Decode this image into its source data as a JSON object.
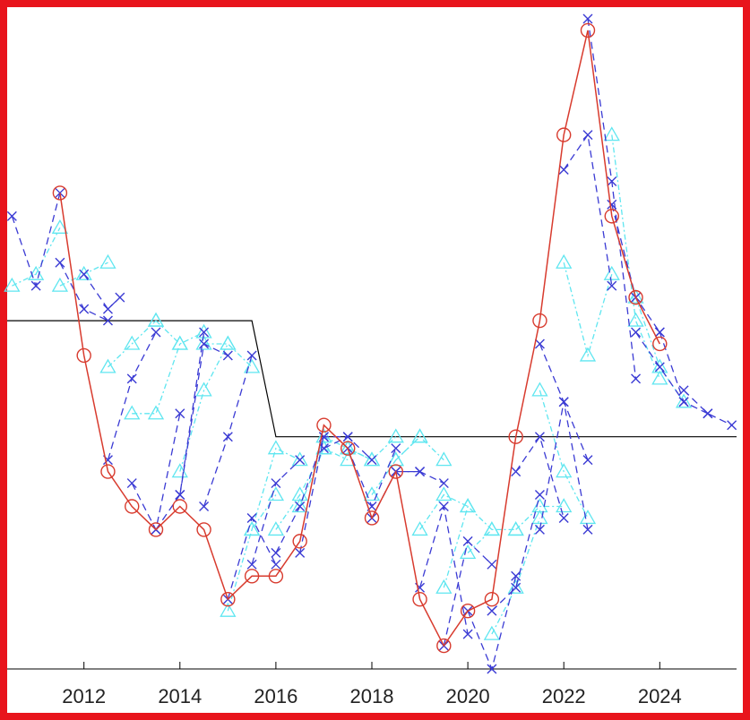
{
  "chart_data": {
    "type": "line",
    "title": "",
    "xlabel": "",
    "ylabel": "",
    "xlim": [
      2010.4,
      2025.6
    ],
    "ylim": [
      0,
      28.5
    ],
    "x_ticks": [
      2012,
      2014,
      2016,
      2018,
      2020,
      2022,
      2024
    ],
    "x_tick_labels": [
      "2012",
      "2014",
      "2016",
      "2018",
      "2020",
      "2022",
      "2024"
    ],
    "y_ticks_visible": false,
    "grid": false,
    "legend": "none",
    "colors": {
      "actual": "#d83b2e",
      "forecast_cross": "#3b3bd4",
      "forecast_triangle": "#5fe6f0",
      "reference": "#000000",
      "frame": "#e8141c"
    },
    "reference_line": {
      "x": [
        2010.4,
        2015.5,
        2016.0,
        2025.6
      ],
      "y": [
        15,
        15,
        10,
        10
      ]
    },
    "actual_series": {
      "x": [
        2011.5,
        2012.0,
        2012.5,
        2013.0,
        2013.5,
        2014.0,
        2014.5,
        2015.0,
        2015.5,
        2016.0,
        2016.5,
        2017.0,
        2017.5,
        2018.0,
        2018.5,
        2019.0,
        2019.5,
        2020.0,
        2020.5,
        2021.0,
        2021.5,
        2022.0,
        2022.5,
        2023.0,
        2023.5,
        2024.0
      ],
      "y": [
        20.5,
        13.5,
        8.5,
        7,
        6,
        7,
        6,
        3,
        4,
        4,
        5.5,
        10.5,
        9.5,
        6.5,
        8.5,
        3,
        1,
        2.5,
        3,
        10,
        15,
        23,
        27.5,
        19.5,
        16,
        14
      ]
    },
    "forecast_cross_paths": [
      {
        "x": [
          2010.5,
          2011.0,
          2011.5
        ],
        "y": [
          19.5,
          16.5,
          20.5
        ]
      },
      {
        "x": [
          2011.5,
          2012.0,
          2012.5
        ],
        "y": [
          17.5,
          15.5,
          15
        ]
      },
      {
        "x": [
          2012.0,
          2012.5,
          2012.75
        ],
        "y": [
          17,
          15.5,
          16
        ]
      },
      {
        "x": [
          2012.5,
          2013.0,
          2013.5
        ],
        "y": [
          9,
          12.5,
          14.5
        ]
      },
      {
        "x": [
          2013.0,
          2013.5,
          2014.0
        ],
        "y": [
          8,
          6,
          11
        ]
      },
      {
        "x": [
          2013.5,
          2014.0,
          2014.5
        ],
        "y": [
          6,
          7.5,
          14.5
        ]
      },
      {
        "x": [
          2014.0,
          2014.5,
          2015.0
        ],
        "y": [
          7.5,
          14,
          13.5
        ]
      },
      {
        "x": [
          2014.5,
          2015.0,
          2015.5
        ],
        "y": [
          7,
          10,
          13.5
        ]
      },
      {
        "x": [
          2015.0,
          2015.5,
          2016.0
        ],
        "y": [
          3,
          6.5,
          4.5
        ]
      },
      {
        "x": [
          2015.5,
          2016.0,
          2016.5
        ],
        "y": [
          4.5,
          8,
          9
        ]
      },
      {
        "x": [
          2016.0,
          2016.5,
          2017.0
        ],
        "y": [
          5,
          7,
          10
        ]
      },
      {
        "x": [
          2016.5,
          2017.0,
          2017.5
        ],
        "y": [
          5,
          10,
          10
        ]
      },
      {
        "x": [
          2017.0,
          2017.5,
          2018.0
        ],
        "y": [
          9.5,
          10,
          9
        ]
      },
      {
        "x": [
          2017.5,
          2018.0,
          2018.5
        ],
        "y": [
          9.5,
          7,
          9.5
        ]
      },
      {
        "x": [
          2018.0,
          2018.5,
          2019.0
        ],
        "y": [
          6.5,
          8.5,
          8.5
        ]
      },
      {
        "x": [
          2018.5,
          2019.0,
          2019.5
        ],
        "y": [
          8.5,
          8.5,
          8
        ]
      },
      {
        "x": [
          2019.0,
          2019.5,
          2020.0
        ],
        "y": [
          3.5,
          7,
          1.5
        ]
      },
      {
        "x": [
          2019.5,
          2020.0,
          2020.5
        ],
        "y": [
          1,
          5.5,
          4.5
        ]
      },
      {
        "x": [
          2020.0,
          2020.5,
          2021.0
        ],
        "y": [
          2.5,
          0,
          4
        ]
      },
      {
        "x": [
          2020.5,
          2021.0,
          2021.5
        ],
        "y": [
          2.5,
          3.5,
          7.5
        ]
      },
      {
        "x": [
          2021.0,
          2021.5,
          2022.0
        ],
        "y": [
          8.5,
          10,
          6.5
        ]
      },
      {
        "x": [
          2021.5,
          2022.0,
          2022.5
        ],
        "y": [
          6,
          11.5,
          9
        ]
      },
      {
        "x": [
          2021.5,
          2022.0,
          2022.5
        ],
        "y": [
          14,
          11.5,
          6
        ]
      },
      {
        "x": [
          2022.0,
          2022.5,
          2023.0
        ],
        "y": [
          21.5,
          23,
          16.5
        ]
      },
      {
        "x": [
          2022.5,
          2023.0,
          2023.5
        ],
        "y": [
          28,
          21,
          12.5
        ]
      },
      {
        "x": [
          2023.0,
          2023.5,
          2024.0
        ],
        "y": [
          20,
          16,
          14.5
        ]
      },
      {
        "x": [
          2023.5,
          2024.0,
          2024.5
        ],
        "y": [
          14.5,
          13,
          11.5
        ]
      },
      {
        "x": [
          2024.0,
          2024.5,
          2025.0
        ],
        "y": [
          14.5,
          11.5,
          11
        ]
      },
      {
        "x": [
          2024.5,
          2025.0,
          2025.5
        ],
        "y": [
          12,
          11,
          10.5
        ]
      }
    ],
    "forecast_triangle_paths": [
      {
        "x": [
          2010.5,
          2011.0,
          2011.5
        ],
        "y": [
          16.5,
          17,
          19
        ]
      },
      {
        "x": [
          2011.5,
          2012.0,
          2012.5
        ],
        "y": [
          16.5,
          17,
          17.5
        ]
      },
      {
        "x": [
          2012.5,
          2013.0,
          2013.5
        ],
        "y": [
          13,
          14,
          15
        ]
      },
      {
        "x": [
          2013.0,
          2013.5,
          2014.0
        ],
        "y": [
          11,
          11,
          14
        ]
      },
      {
        "x": [
          2013.5,
          2014.0,
          2014.5
        ],
        "y": [
          15,
          14,
          14.5
        ]
      },
      {
        "x": [
          2014.0,
          2014.5,
          2015.0
        ],
        "y": [
          8.5,
          12,
          14
        ]
      },
      {
        "x": [
          2014.5,
          2015.0,
          2015.5
        ],
        "y": [
          14,
          14,
          13
        ]
      },
      {
        "x": [
          2015.0,
          2015.5,
          2016.0
        ],
        "y": [
          2.5,
          6,
          7.5
        ]
      },
      {
        "x": [
          2015.5,
          2016.0,
          2016.5
        ],
        "y": [
          6,
          9.5,
          9
        ]
      },
      {
        "x": [
          2016.0,
          2016.5,
          2017.0
        ],
        "y": [
          6,
          7.5,
          9.5
        ]
      },
      {
        "x": [
          2016.5,
          2017.0,
          2017.5
        ],
        "y": [
          7,
          9.5,
          9
        ]
      },
      {
        "x": [
          2017.0,
          2017.5,
          2018.0
        ],
        "y": [
          10,
          9.5,
          9
        ]
      },
      {
        "x": [
          2017.5,
          2018.0,
          2018.5
        ],
        "y": [
          9.5,
          9,
          10
        ]
      },
      {
        "x": [
          2018.0,
          2018.5,
          2019.0
        ],
        "y": [
          7.5,
          9,
          10
        ]
      },
      {
        "x": [
          2018.5,
          2019.0,
          2019.5
        ],
        "y": [
          9,
          10,
          9
        ]
      },
      {
        "x": [
          2019.0,
          2019.5,
          2020.0
        ],
        "y": [
          6,
          7.5,
          7
        ]
      },
      {
        "x": [
          2019.5,
          2020.0,
          2020.5
        ],
        "y": [
          3.5,
          7,
          6
        ]
      },
      {
        "x": [
          2020.0,
          2020.5,
          2021.0
        ],
        "y": [
          5,
          6,
          6
        ]
      },
      {
        "x": [
          2020.5,
          2021.0,
          2021.5
        ],
        "y": [
          1.5,
          3.5,
          6.5
        ]
      },
      {
        "x": [
          2021.0,
          2021.5,
          2022.0
        ],
        "y": [
          6,
          7,
          7
        ]
      },
      {
        "x": [
          2021.5,
          2022.0,
          2022.5
        ],
        "y": [
          12,
          8.5,
          6.5
        ]
      },
      {
        "x": [
          2022.0,
          2022.5,
          2023.0
        ],
        "y": [
          17.5,
          13.5,
          17
        ]
      },
      {
        "x": [
          2023.0,
          2023.5,
          2024.0
        ],
        "y": [
          23,
          15,
          12.5
        ]
      },
      {
        "x": [
          2023.5,
          2024.0,
          2024.5
        ],
        "y": [
          16,
          13,
          11.5
        ]
      }
    ]
  }
}
